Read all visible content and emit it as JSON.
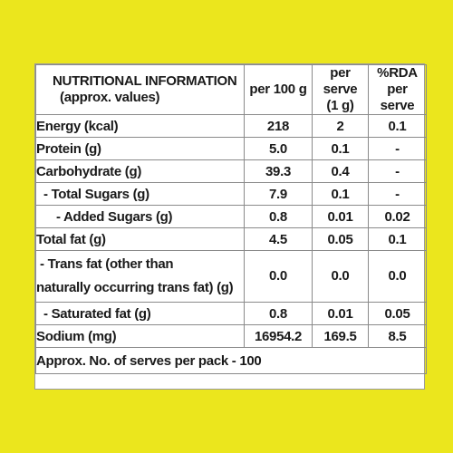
{
  "page": {
    "background": "#ebe61d"
  },
  "table": {
    "header": {
      "title": "NUTRITIONAL INFORMATION",
      "subtitle": "(approx. values)",
      "per100": "per 100 g",
      "perServe_line1": "per serve",
      "perServe_line2": "(1 g)",
      "rda_line1": "%RDA",
      "rda_line2": "per serve"
    },
    "rows": [
      {
        "label": "Energy (kcal)",
        "per100": "218",
        "perServe": "2",
        "rda": "0.1"
      },
      {
        "label": "Protein (g)",
        "per100": "5.0",
        "perServe": "0.1",
        "rda": "-"
      },
      {
        "label": "Carbohydrate (g)",
        "per100": "39.3",
        "perServe": "0.4",
        "rda": "-"
      },
      {
        "label": "- Total Sugars (g)",
        "per100": "7.9",
        "perServe": "0.1",
        "rda": "-"
      },
      {
        "label": "- Added Sugars (g)",
        "per100": "0.8",
        "perServe": "0.01",
        "rda": "0.02"
      },
      {
        "label": "Total fat (g)",
        "per100": "4.5",
        "perServe": "0.05",
        "rda": "0.1"
      },
      {
        "label_line1": "- Trans fat (other than",
        "label_line2": "naturally occurring trans fat) (g)",
        "per100": "0.0",
        "perServe": "0.0",
        "rda": "0.0"
      },
      {
        "label": "- Saturated fat (g)",
        "per100": "0.8",
        "perServe": "0.01",
        "rda": "0.05"
      },
      {
        "label": "Sodium (mg)",
        "per100": "16954.2",
        "perServe": "169.5",
        "rda": "8.5"
      }
    ],
    "footer": "Approx. No. of serves per pack - 100"
  }
}
